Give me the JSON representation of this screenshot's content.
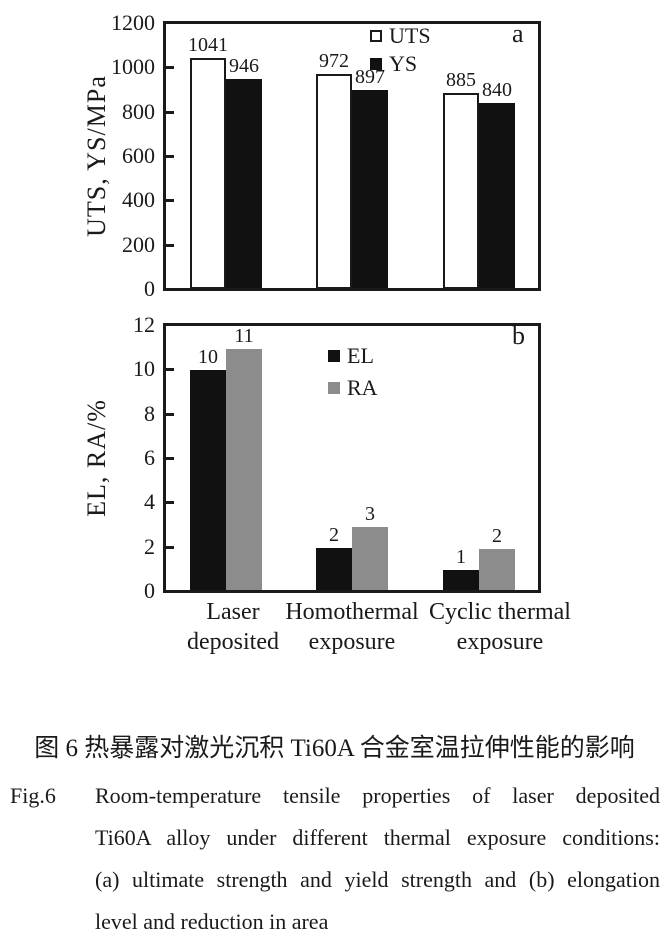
{
  "caption": {
    "cn": "图 6  热暴露对激光沉积 Ti60A 合金室温拉伸性能的影响",
    "fig_tag": "Fig.6",
    "en_lines": [
      "Room-temperature tensile properties of laser deposited",
      "Ti60A alloy under different thermal exposure conditions:",
      "(a) ultimate strength and yield strength and (b) elongation",
      "level and reduction in area"
    ]
  },
  "chart_data": [
    {
      "type": "bar",
      "panel": "a",
      "ylabel": "UTS, YS/MPa",
      "ylim": [
        0,
        1200
      ],
      "yticks": [
        0,
        200,
        400,
        600,
        800,
        1000,
        1200
      ],
      "categories": [
        "Laser deposited",
        "Homothermal exposure",
        "Cyclic thermal exposure"
      ],
      "series": [
        {
          "name": "UTS",
          "fill": "#ffffff",
          "values": [
            1041,
            972,
            885
          ],
          "labels": [
            "1041",
            "972",
            "885"
          ]
        },
        {
          "name": "YS",
          "fill": "#111111",
          "values": [
            946,
            897,
            840
          ],
          "labels": [
            "946",
            "897",
            "840"
          ]
        }
      ],
      "legend_position": "inside-top-center",
      "grid": false
    },
    {
      "type": "bar",
      "panel": "b",
      "ylabel": "EL, RA/%",
      "ylim": [
        0,
        12
      ],
      "yticks": [
        0,
        2,
        4,
        6,
        8,
        10,
        12
      ],
      "categories": [
        "Laser deposited",
        "Homothermal exposure",
        "Cyclic thermal exposure"
      ],
      "categories_lines": [
        [
          "Laser",
          "deposited"
        ],
        [
          "Homothermal",
          "exposure"
        ],
        [
          "Cyclic thermal",
          "exposure"
        ]
      ],
      "series": [
        {
          "name": "EL",
          "fill": "#111111",
          "values": [
            10,
            2,
            1
          ],
          "labels": [
            "10",
            "2",
            "1"
          ],
          "plotted": [
            9.95,
            1.95,
            0.95
          ]
        },
        {
          "name": "RA",
          "fill": "#8c8c8c",
          "values": [
            11,
            3,
            2
          ],
          "labels": [
            "11",
            "3",
            "2"
          ],
          "plotted": [
            10.9,
            2.9,
            1.9
          ]
        }
      ],
      "legend_position": "inside-top-left",
      "grid": false
    }
  ],
  "colors": {
    "axis": "#1a1a1a",
    "bar_black": "#111111",
    "bar_gray": "#8c8c8c",
    "bar_white": "#ffffff",
    "background": "#ffffff"
  }
}
